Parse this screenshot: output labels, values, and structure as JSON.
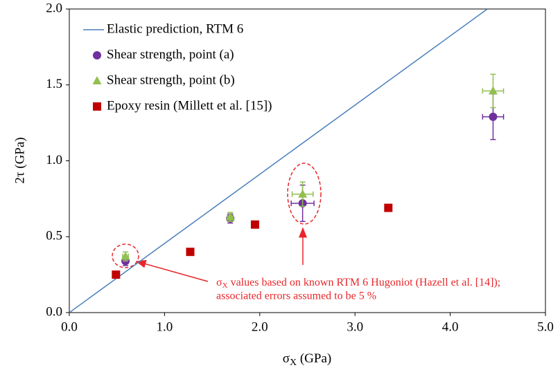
{
  "chart_data": {
    "type": "scatter",
    "x_label": {
      "symbol": "σ",
      "sub": "X",
      "text": " (GPa)"
    },
    "y_label": "2τ (GPa)",
    "xlim": [
      0,
      5
    ],
    "ylim": [
      0,
      2
    ],
    "xticks": [
      {
        "value": 0,
        "label": "0.0"
      },
      {
        "value": 1,
        "label": "1.0"
      },
      {
        "value": 2,
        "label": "2.0"
      },
      {
        "value": 3,
        "label": "3.0"
      },
      {
        "value": 4,
        "label": "4.0"
      },
      {
        "value": 5,
        "label": "5.0"
      }
    ],
    "yticks": [
      {
        "value": 0,
        "label": "0.0"
      },
      {
        "value": 0.5,
        "label": "0.5"
      },
      {
        "value": 1,
        "label": "1.0"
      },
      {
        "value": 1.5,
        "label": "1.5"
      },
      {
        "value": 2,
        "label": "2.0"
      }
    ],
    "legend": "top-left",
    "series": [
      {
        "name": "Elastic prediction, RTM 6",
        "color": "#4a7ebb",
        "marker": "line",
        "x": [
          0,
          4.39
        ],
        "values": [
          0,
          2.0
        ]
      },
      {
        "name": "Shear strength, point (a)",
        "color": "#7030a0",
        "marker": "circle",
        "x": [
          0.59,
          1.69,
          2.45,
          4.45
        ],
        "values": [
          0.34,
          0.62,
          0.72,
          1.29
        ],
        "yerr": [
          0.03,
          0.03,
          0.12,
          0.15
        ],
        "xerr": [
          0.03,
          0.03,
          0.12,
          0.11
        ]
      },
      {
        "name": "Shear strength, point (b)",
        "color": "#92c050",
        "marker": "triangle",
        "x": [
          0.59,
          1.69,
          2.45,
          4.45
        ],
        "values": [
          0.37,
          0.63,
          0.78,
          1.46
        ],
        "yerr": [
          0.03,
          0.03,
          0.08,
          0.11
        ],
        "xerr": [
          0.03,
          0.03,
          0.11,
          0.11
        ]
      },
      {
        "name": "Epoxy resin (Millett et al. [15])",
        "color": "#c00000",
        "marker": "square",
        "x": [
          0.49,
          1.27,
          1.95,
          3.35
        ],
        "values": [
          0.25,
          0.4,
          0.58,
          0.69
        ]
      }
    ],
    "annotation": {
      "symbol": "σ",
      "sub": "X",
      "line1": " values based on known RTM 6 Hugoniot (Hazell et al. [14]);",
      "line2": "associated errors assumed to be   5 %"
    }
  }
}
